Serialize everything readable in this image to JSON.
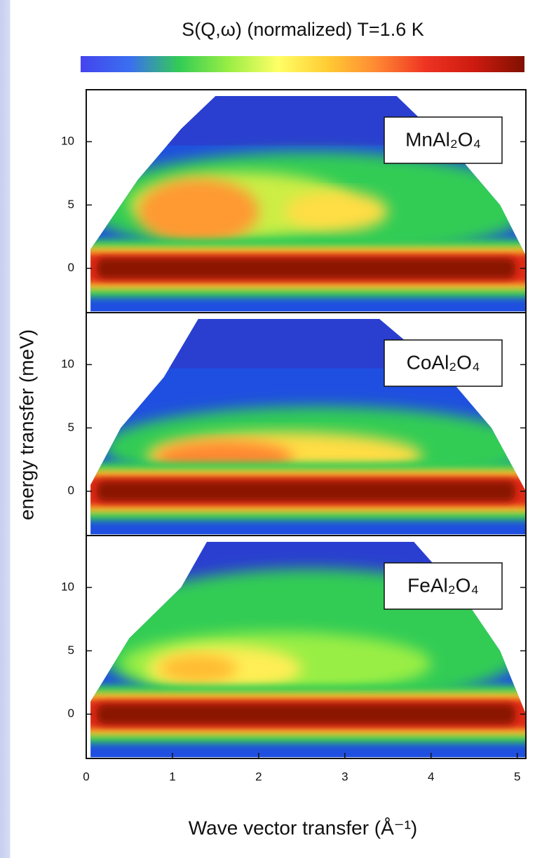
{
  "chart_data": {
    "type": "heatmap",
    "title": "S(Q,ω) (normalized)  T=1.6 K",
    "colorbar": [
      "#4444ee",
      "#3a6ff0",
      "#33cc55",
      "#99ee44",
      "#ffff66",
      "#ffcc33",
      "#ff8833",
      "#ee3322",
      "#cc1a10",
      "#801000"
    ],
    "xlabel": "Wave vector transfer (Å⁻¹)",
    "ylabel": "energy transfer (meV)",
    "xlim": [
      0,
      5.1
    ],
    "xticks": [
      0,
      1,
      2,
      3,
      4,
      5
    ],
    "panels": [
      {
        "label": "MnAl₂O₄",
        "ylim": [
          -3.5,
          14.1
        ],
        "yticks": [
          0,
          5,
          10
        ]
      },
      {
        "label": "CoAl₂O₄",
        "ylim": [
          -3.5,
          14.1
        ],
        "yticks": [
          0,
          5,
          10
        ]
      },
      {
        "label": "FeAl₂O₄",
        "ylim": [
          -3.5,
          14.1
        ],
        "yticks": [
          0,
          5,
          10
        ]
      }
    ]
  }
}
